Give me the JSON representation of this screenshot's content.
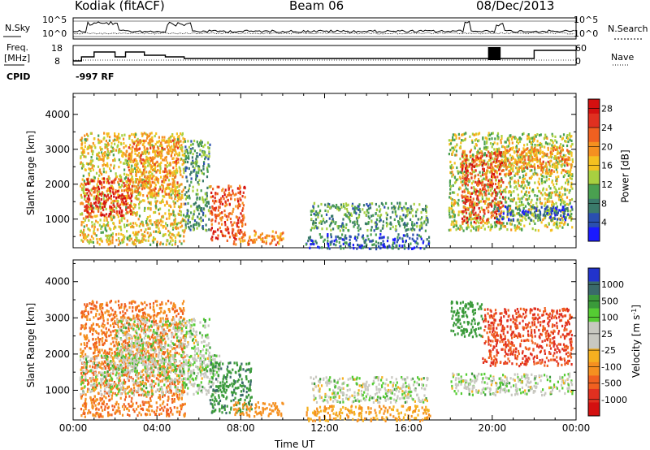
{
  "header": {
    "station": "Kodiak (fitACF)",
    "beam": "Beam 06",
    "date": "08/Dec/2013"
  },
  "strip_labels": {
    "nsky": "N.Sky",
    "nsky_tick_top": "10^5",
    "nsky_tick_bottom": "10^0",
    "nsearch": "N.Search",
    "nsearch_tick_top": "10^5",
    "nsearch_tick_bottom": "10^0",
    "freq_line1": "Freq.",
    "freq_line2": "[MHz]",
    "freq_tick_top": "18",
    "freq_tick_bottom": "8",
    "nave": "Nave",
    "nave_tick_top": "60",
    "nave_tick_bottom": "0",
    "cpid": "CPID",
    "cpid_value": "-997 RF"
  },
  "chart_data": [
    {
      "type": "heatmap",
      "panel": "power",
      "ylabel": "Slant Range [km]",
      "ylim": [
        180,
        4600
      ],
      "yticks": [
        "1000",
        "2000",
        "3000",
        "4000"
      ],
      "xlim": [
        0,
        24
      ],
      "colorbar": {
        "label": "Power [dB]",
        "ticks": [
          "4",
          "8",
          "12",
          "16",
          "20",
          "24",
          "28"
        ],
        "range": [
          0,
          30
        ],
        "colors": [
          "#1a1aff",
          "#2a4fb0",
          "#3a7a6a",
          "#4aa050",
          "#a8d040",
          "#f5c020",
          "#f59020",
          "#f06020",
          "#e03020",
          "#d41010"
        ]
      },
      "regions": [
        {
          "t0": 0.3,
          "t1": 5.3,
          "r0": 300,
          "r1": 3500,
          "dB": 16
        },
        {
          "t0": 0.5,
          "t1": 2.8,
          "r0": 1100,
          "r1": 2200,
          "dB": 26
        },
        {
          "t0": 2.5,
          "t1": 5.0,
          "r0": 1700,
          "r1": 3300,
          "dB": 20
        },
        {
          "t0": 5.3,
          "t1": 6.5,
          "r0": 700,
          "r1": 3300,
          "dB": 10
        },
        {
          "t0": 6.5,
          "t1": 8.2,
          "r0": 400,
          "r1": 2000,
          "dB": 24
        },
        {
          "t0": 7.6,
          "t1": 10.0,
          "r0": 300,
          "r1": 700,
          "dB": 20
        },
        {
          "t0": 11.3,
          "t1": 16.9,
          "r0": 700,
          "r1": 1500,
          "dB": 10
        },
        {
          "t0": 11.0,
          "t1": 17.0,
          "r0": 180,
          "r1": 600,
          "dB": 6
        },
        {
          "t0": 17.9,
          "t1": 23.8,
          "r0": 700,
          "r1": 3500,
          "dB": 14
        },
        {
          "t0": 18.5,
          "t1": 20.5,
          "r0": 900,
          "r1": 3000,
          "dB": 24
        },
        {
          "t0": 20.5,
          "t1": 23.8,
          "r0": 2300,
          "r1": 3100,
          "dB": 20
        },
        {
          "t0": 20.0,
          "t1": 23.8,
          "r0": 1000,
          "r1": 1400,
          "dB": 5
        }
      ]
    },
    {
      "type": "heatmap",
      "panel": "velocity",
      "ylabel": "Slant Range [km]",
      "ylim": [
        180,
        4600
      ],
      "yticks": [
        "1000",
        "2000",
        "3000",
        "4000"
      ],
      "xlim": [
        0,
        24
      ],
      "xlabel": "Time UT",
      "xticks": [
        "00:00",
        "04:00",
        "08:00",
        "12:00",
        "16:00",
        "20:00",
        "00:00"
      ],
      "colorbar": {
        "label": "Velocity [m s^-1]",
        "ticks": [
          "1000",
          "500",
          "100",
          "25",
          "-25",
          "-100",
          "-500",
          "-1000"
        ],
        "colors": [
          "#2233cc",
          "#3a6a6a",
          "#3a9a3a",
          "#55cc33",
          "#c8c8c0",
          "#c8c8c0",
          "#f5b020",
          "#f59020",
          "#f06020",
          "#e03020",
          "#d41010"
        ]
      },
      "regions": [
        {
          "t0": 0.3,
          "t1": 5.3,
          "r0": 300,
          "r1": 3500,
          "v": -150
        },
        {
          "t0": 0.3,
          "t1": 7.0,
          "r0": 900,
          "r1": 2000,
          "v": 0
        },
        {
          "t0": 2.0,
          "t1": 6.5,
          "r0": 1500,
          "r1": 3000,
          "v": 0
        },
        {
          "t0": 6.5,
          "t1": 8.5,
          "r0": 400,
          "r1": 1800,
          "v": 80
        },
        {
          "t0": 7.6,
          "t1": 10.0,
          "r0": 300,
          "r1": 700,
          "v": -120
        },
        {
          "t0": 11.3,
          "t1": 16.9,
          "r0": 700,
          "r1": 1400,
          "v": 0
        },
        {
          "t0": 11.0,
          "t1": 17.0,
          "r0": 180,
          "r1": 600,
          "v": -60
        },
        {
          "t0": 18.0,
          "t1": 23.8,
          "r0": 900,
          "r1": 1500,
          "v": 0
        },
        {
          "t0": 19.5,
          "t1": 23.8,
          "r0": 1700,
          "r1": 3300,
          "v": -300
        },
        {
          "t0": 18.0,
          "t1": 19.5,
          "r0": 2500,
          "r1": 3500,
          "v": 60
        }
      ]
    }
  ]
}
